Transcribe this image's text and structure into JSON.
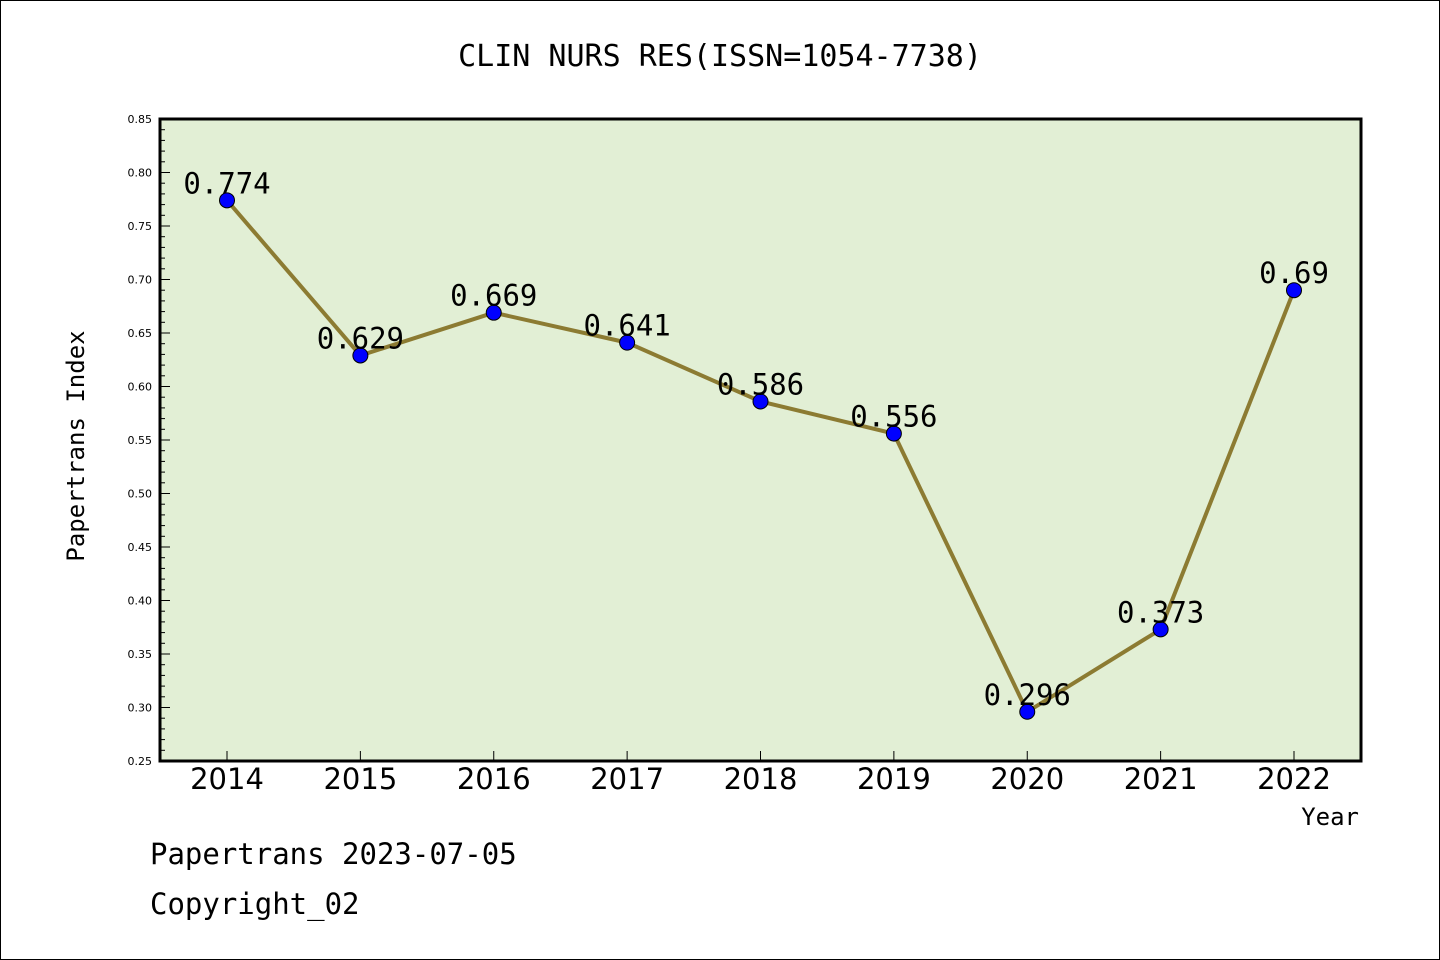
{
  "chart_data": {
    "type": "line",
    "title": "CLIN NURS RES(ISSN=1054-7738)",
    "xlabel": "Year",
    "ylabel": "Papertrans Index",
    "categories": [
      "2014",
      "2015",
      "2016",
      "2017",
      "2018",
      "2019",
      "2020",
      "2021",
      "2022"
    ],
    "values": [
      0.774,
      0.629,
      0.669,
      0.641,
      0.586,
      0.556,
      0.296,
      0.373,
      0.69
    ],
    "data_labels": [
      "0.774",
      "0.629",
      "0.669",
      "0.641",
      "0.586",
      "0.556",
      "0.296",
      "0.373",
      "0.69"
    ],
    "ylim": [
      0.25,
      0.85
    ],
    "yticks": [
      "0.25",
      "0.30",
      "0.35",
      "0.40",
      "0.45",
      "0.50",
      "0.55",
      "0.60",
      "0.65",
      "0.70",
      "0.75",
      "0.80",
      "0.85"
    ],
    "grid": false,
    "colors": {
      "plot_background": "#e2efd5",
      "line": "#8c7b32",
      "marker": "#0000ff"
    }
  },
  "footer": {
    "date_line": "Papertrans 2023-07-05",
    "copyright": "Copyright_02"
  }
}
